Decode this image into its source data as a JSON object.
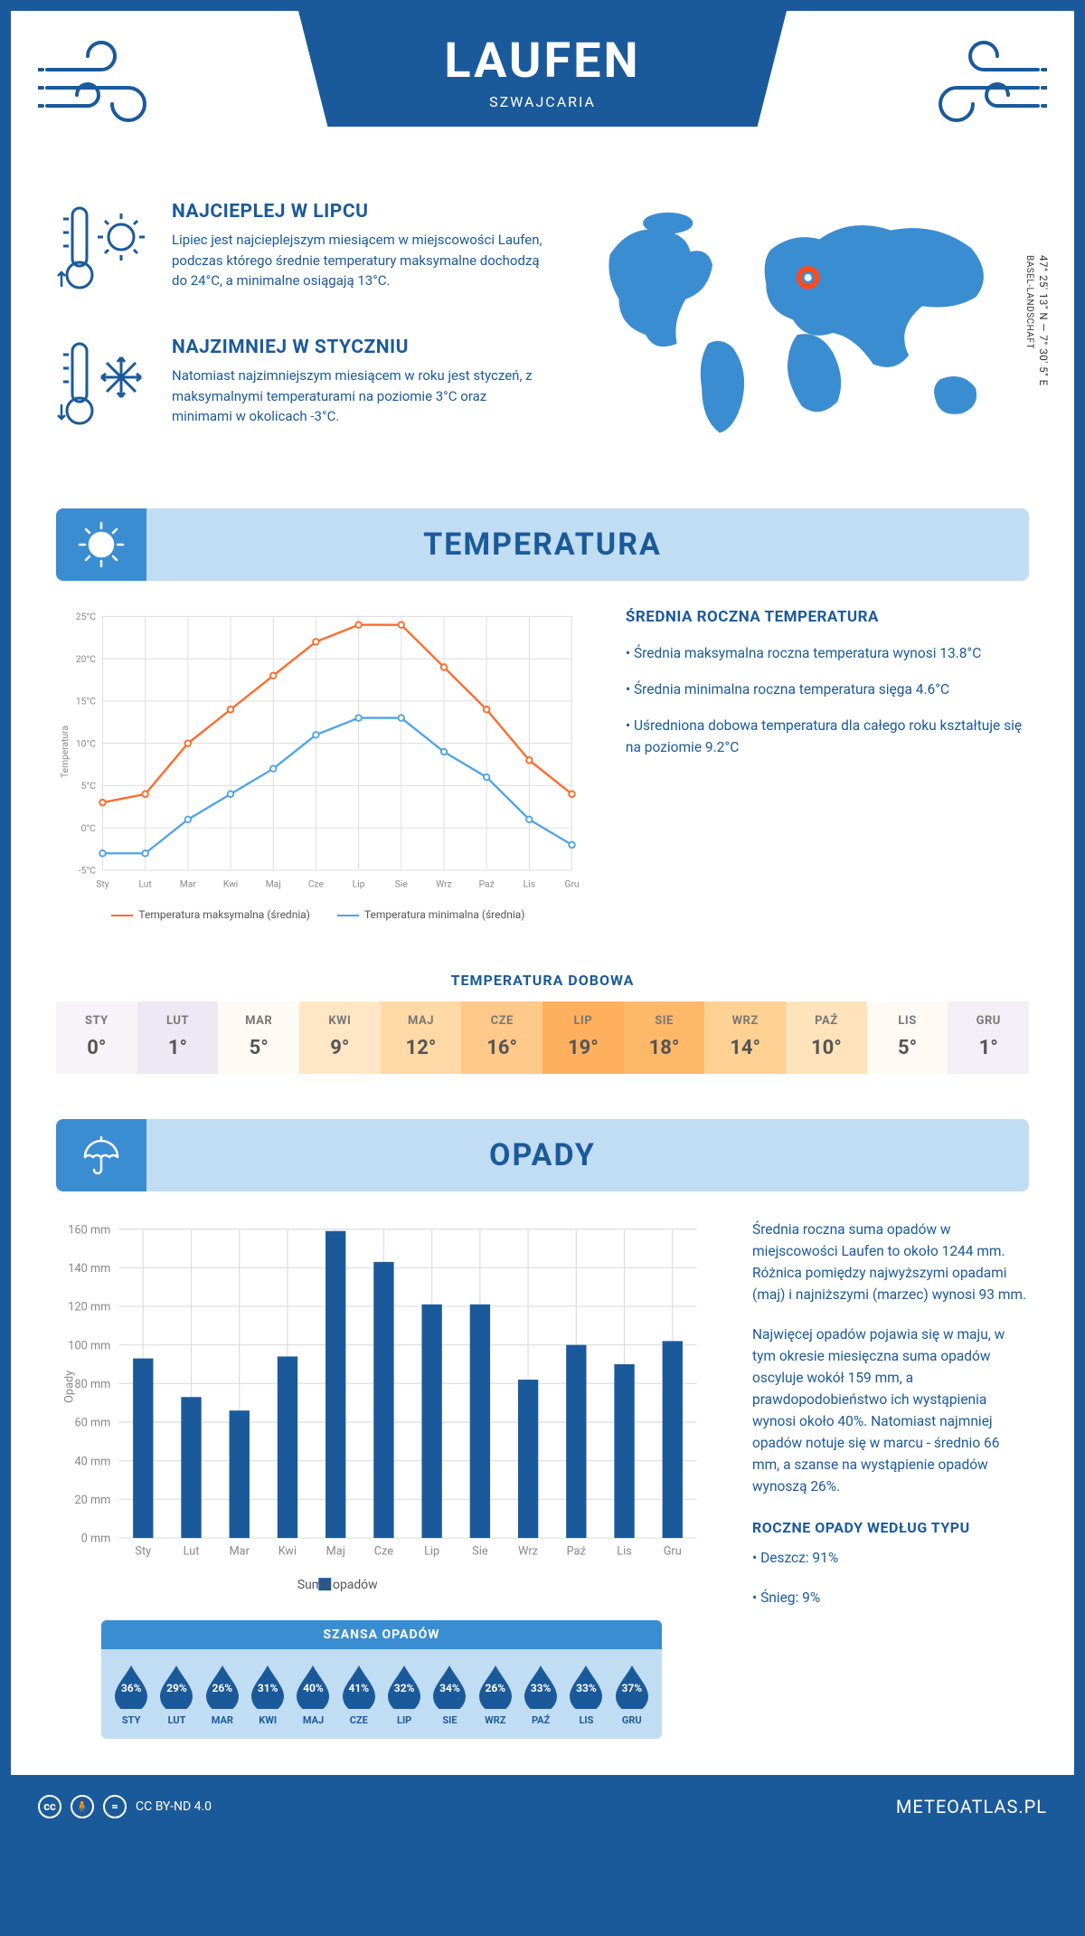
{
  "header": {
    "title": "LAUFEN",
    "subtitle": "SZWAJCARIA"
  },
  "map": {
    "coords_line1": "47° 25' 13\" N — 7° 30' 5\" E",
    "region": "BASEL-LANDSCHAFT",
    "marker_color": "#ff4a1a",
    "land_color": "#3b8dd1"
  },
  "intro": {
    "hot": {
      "title": "NAJCIEPLEJ W LIPCU",
      "text": "Lipiec jest najcieplejszym miesiącem w miejscowości Laufen, podczas którego średnie temperatury maksymalne dochodzą do 24°C, a minimalne osiągają 13°C."
    },
    "cold": {
      "title": "NAJZIMNIEJ W STYCZNIU",
      "text": "Natomiast najzimniejszym miesiącem w roku jest styczeń, z maksymalnymi temperaturami na poziomie 3°C oraz minimami w okolicach -3°C."
    }
  },
  "section_temp": {
    "title": "TEMPERATURA",
    "side_title": "ŚREDNIA ROCZNA TEMPERATURA",
    "side_bullets": [
      "• Średnia maksymalna roczna temperatura wynosi 13.8°C",
      "• Średnia minimalna roczna temperatura sięga 4.6°C",
      "• Uśredniona dobowa temperatura dla całego roku kształtuje się na poziomie 9.2°C"
    ],
    "legend_max": "Temperatura maksymalna (średnia)",
    "legend_min": "Temperatura minimalna (średnia)",
    "strip_title": "TEMPERATURA DOBOWA"
  },
  "temp_chart": {
    "type": "line",
    "ylabel": "Temperatura",
    "ylim": [
      -5,
      25
    ],
    "ytick_step": 5,
    "ytick_suffix": "°C",
    "months": [
      "Sty",
      "Lut",
      "Mar",
      "Kwi",
      "Maj",
      "Cze",
      "Lip",
      "Sie",
      "Wrz",
      "Paź",
      "Lis",
      "Gru"
    ],
    "max_values": [
      3,
      4,
      10,
      14,
      18,
      22,
      24,
      24,
      19,
      14,
      8,
      4
    ],
    "min_values": [
      -3,
      -3,
      1,
      4,
      7,
      11,
      13,
      13,
      9,
      6,
      1,
      -2
    ],
    "max_color": "#ff6a2b",
    "min_color": "#4fa4e6",
    "grid_color": "#dddddd",
    "marker_radius": 3.5
  },
  "temp_strip": {
    "months": [
      "STY",
      "LUT",
      "MAR",
      "KWI",
      "MAJ",
      "CZE",
      "LIP",
      "SIE",
      "WRZ",
      "PAŹ",
      "LIS",
      "GRU"
    ],
    "values": [
      "0°",
      "1°",
      "5°",
      "9°",
      "12°",
      "16°",
      "19°",
      "18°",
      "14°",
      "10°",
      "5°",
      "1°"
    ],
    "bg_colors": [
      "#f6f4f9",
      "#ece9f4",
      "#fffaf4",
      "#ffe7c6",
      "#ffd9a6",
      "#ffc98a",
      "#ffb05c",
      "#ffb868",
      "#ffd193",
      "#ffe3bb",
      "#fffaf4",
      "#f2eff7"
    ]
  },
  "section_precip": {
    "title": "OPADY",
    "legend": "Suma opadów",
    "drops_title": "SZANSA OPADÓW",
    "type_title": "ROCZNE OPADY WEDŁUG TYPU",
    "type_bullets": [
      "• Deszcz: 91%",
      "• Śnieg: 9%"
    ],
    "para1": "Średnia roczna suma opadów w miejscowości Laufen to około 1244 mm. Różnica pomiędzy najwyższymi opadami (maj) i najniższymi (marzec) wynosi 93 mm.",
    "para2": "Najwięcej opadów pojawia się w maju, w tym okresie miesięczna suma opadów oscyluje wokół 159 mm, a prawdopodobieństwo ich wystąpienia wynosi około 40%. Natomiast najmniej opadów notuje się w marcu - średnio 66 mm, a szanse na wystąpienie opadów wynoszą 26%."
  },
  "precip_chart": {
    "type": "bar",
    "ylabel": "Opady",
    "ylim": [
      0,
      160
    ],
    "ytick_step": 20,
    "ytick_suffix": " mm",
    "months": [
      "Sty",
      "Lut",
      "Mar",
      "Kwi",
      "Maj",
      "Cze",
      "Lip",
      "Sie",
      "Wrz",
      "Paź",
      "Lis",
      "Gru"
    ],
    "values": [
      93,
      73,
      66,
      94,
      159,
      143,
      121,
      121,
      82,
      100,
      90,
      102
    ],
    "bar_color": "#1b5a9a",
    "grid_color": "#dddddd",
    "bar_width_ratio": 0.42
  },
  "drops": {
    "months": [
      "STY",
      "LUT",
      "MAR",
      "KWI",
      "MAJ",
      "CZE",
      "LIP",
      "SIE",
      "WRZ",
      "PAŹ",
      "LIS",
      "GRU"
    ],
    "pct": [
      "36%",
      "29%",
      "26%",
      "31%",
      "40%",
      "41%",
      "32%",
      "34%",
      "26%",
      "33%",
      "33%",
      "37%"
    ],
    "fill": "#1b5a9a"
  },
  "footer": {
    "license": "CC BY-ND 4.0",
    "brand": "METEOATLAS.PL"
  },
  "palette": {
    "primary": "#1b5a9a",
    "light": "#c1ddf3",
    "mid": "#3b8dd1"
  }
}
